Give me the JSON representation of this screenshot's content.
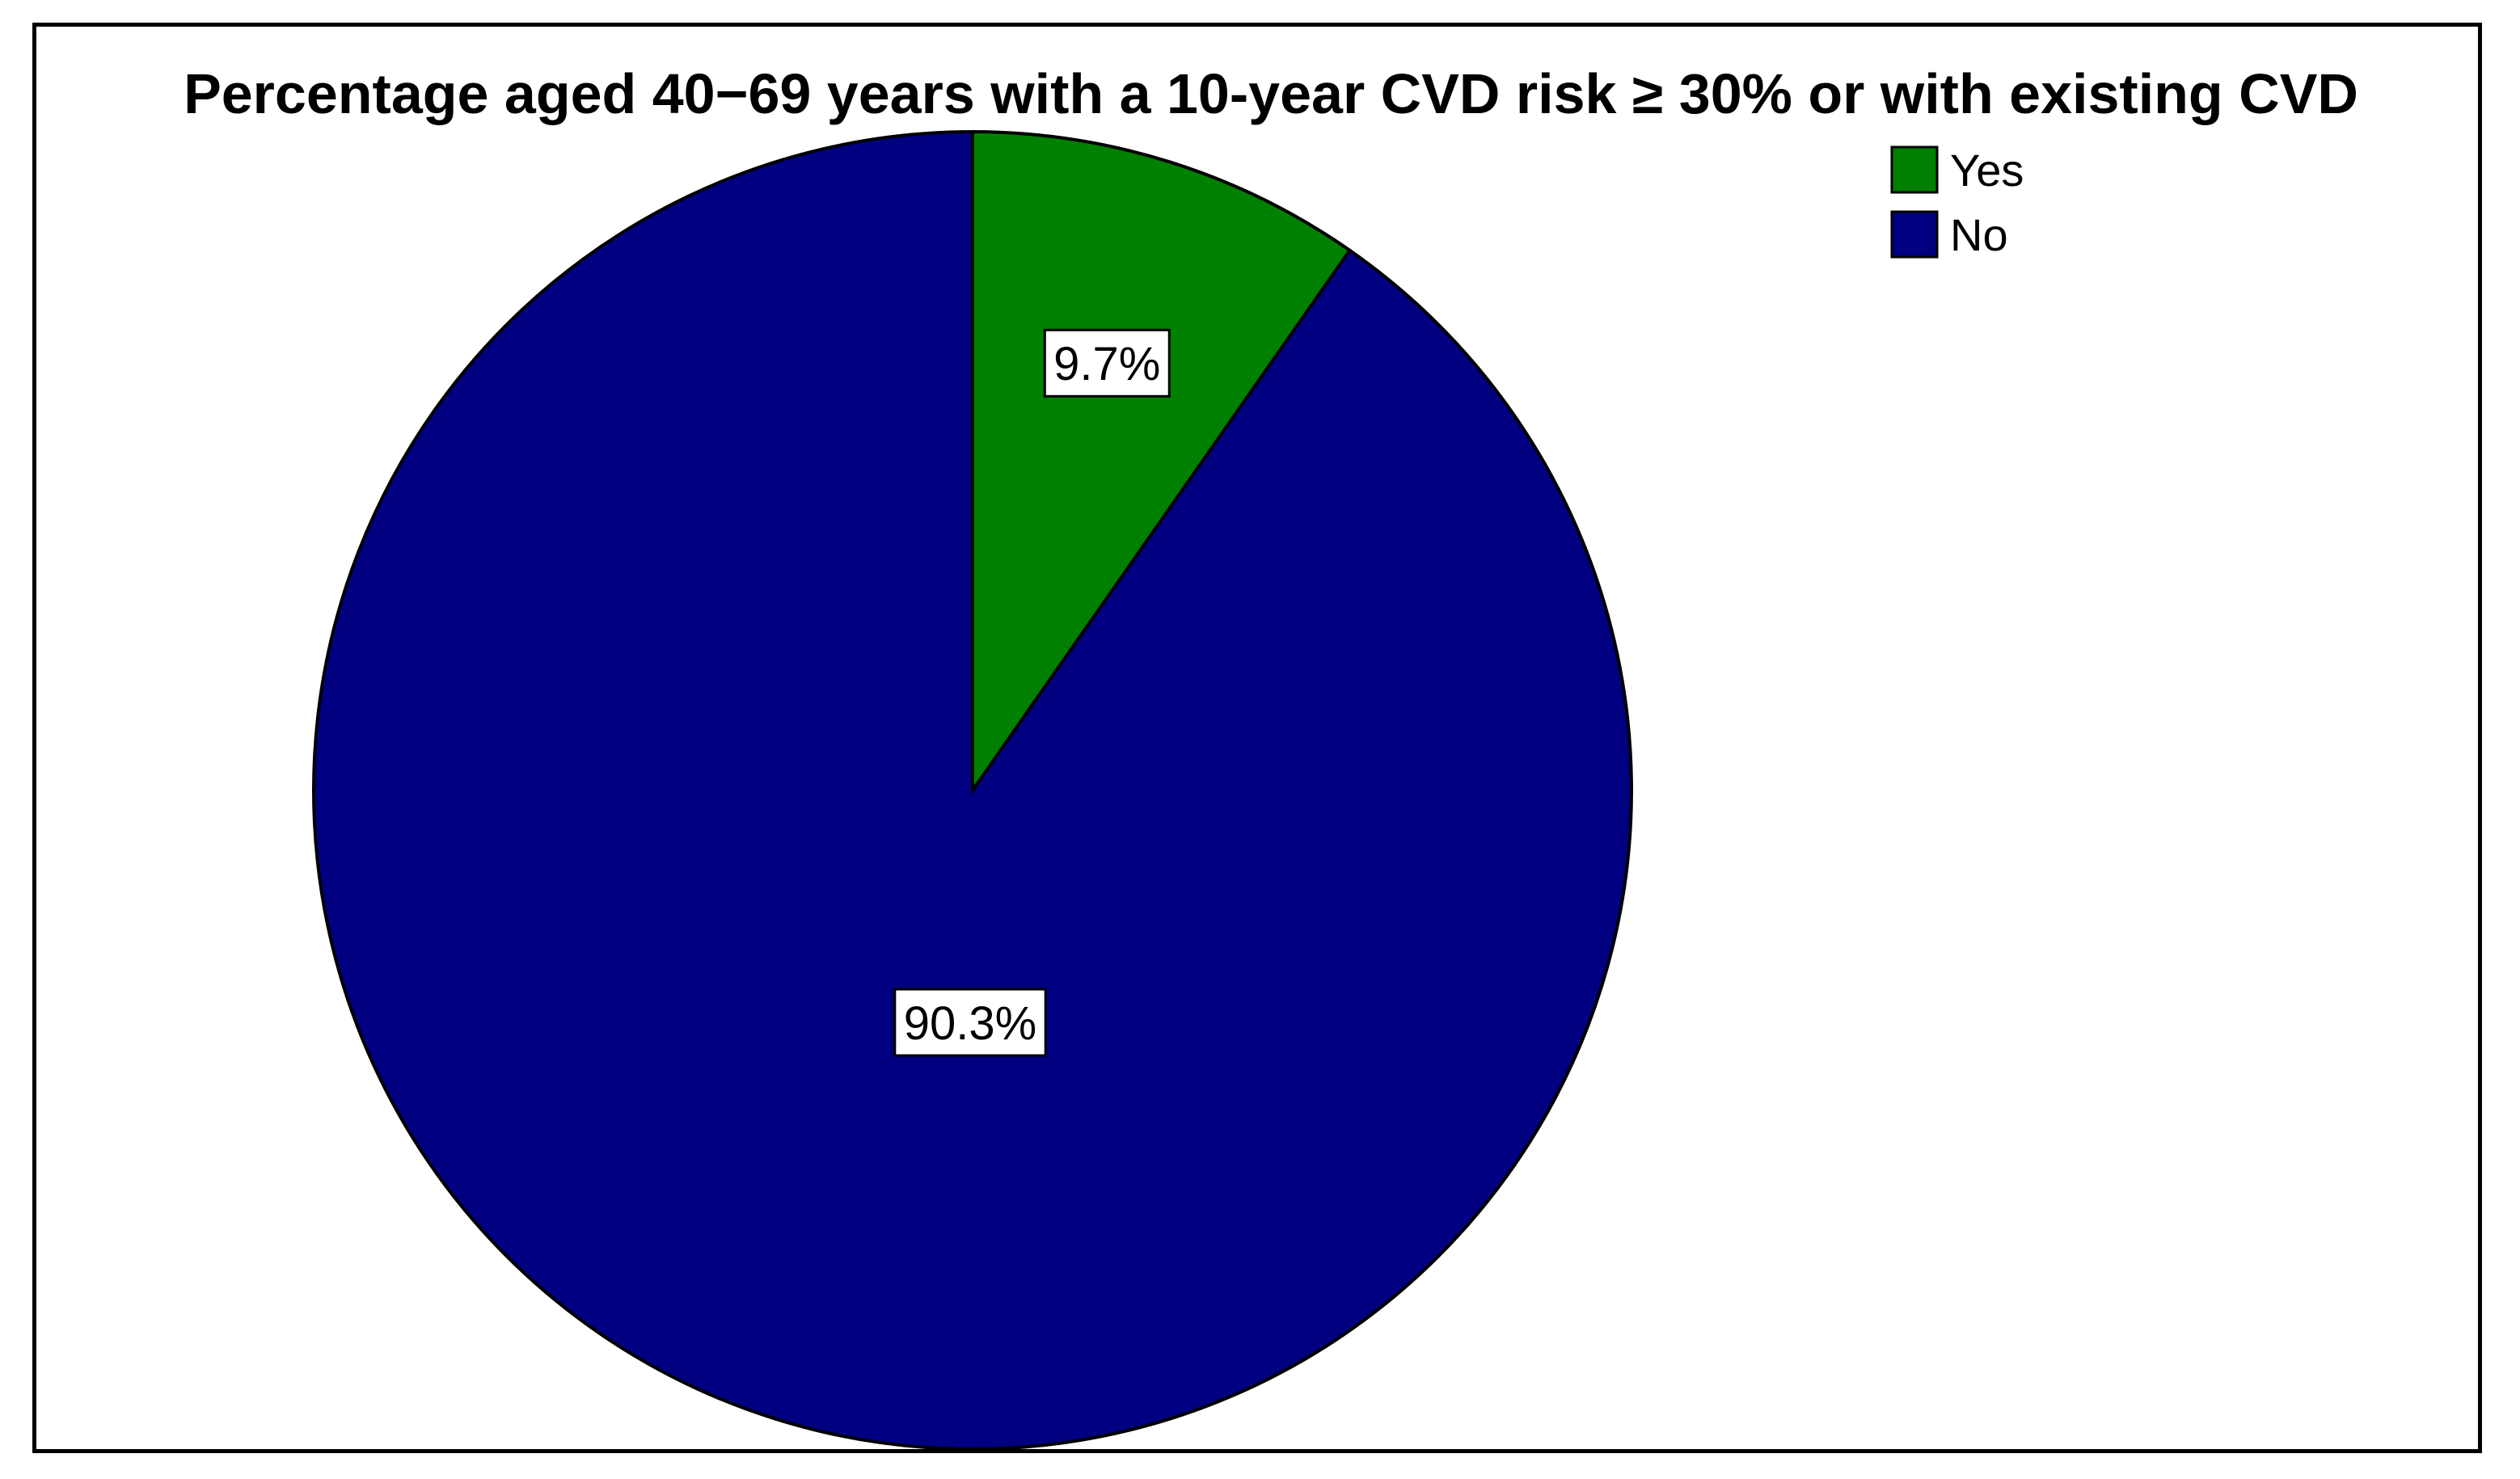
{
  "chart_data": {
    "type": "pie",
    "title": "Percentage aged 40−69 years with a 10-year CVD risk ≥ 30% or with existing CVD",
    "categories": [
      "Yes",
      "No"
    ],
    "values": [
      9.7,
      90.3
    ],
    "data_labels": [
      "9.7%",
      "90.3%"
    ],
    "colors": [
      "#008000",
      "#000080"
    ],
    "start_angle": "12 o'clock",
    "direction": "clockwise",
    "legend": {
      "placement": "top-right",
      "entries": [
        "Yes",
        "No"
      ]
    }
  }
}
